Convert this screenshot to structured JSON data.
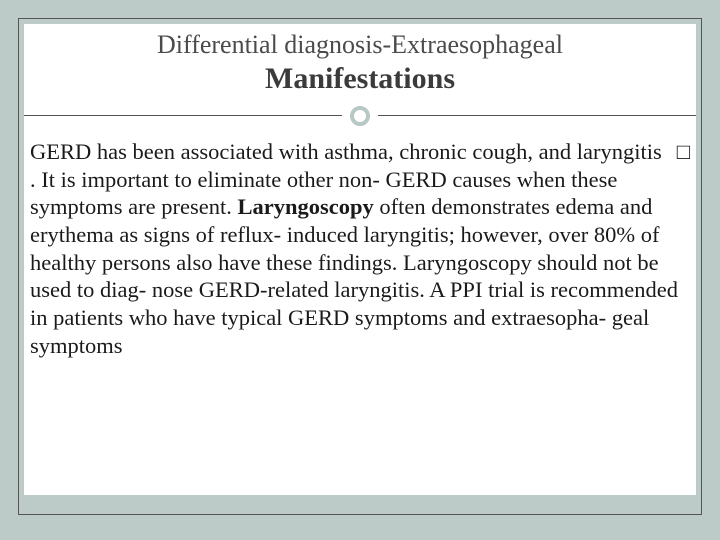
{
  "slide": {
    "title_line1": "Differential diagnosis-Extraesophageal",
    "title_line2": "Manifestations",
    "bullet_glyph": "□",
    "body_segments": [
      {
        "text": "GERD has been associated with asthma, chronic cough, and laryngitis . It is important  to eliminate other non- GERD causes when these symptoms are present. ",
        "bold": false
      },
      {
        "text": "Laryngoscopy",
        "bold": true
      },
      {
        "text": " often demonstrates edema and erythema as signs of reflux- induced laryngitis; however, over 80% of healthy persons also have these findings. Laryngoscopy should not be used to diag- nose GERD-related laryngitis. A PPI trial is recommended in patients who have typical GERD  symptoms and extraesopha- geal symptoms",
        "bold": false
      }
    ]
  },
  "style": {
    "border_color": "#bccbc7",
    "background_color": "#ffffff",
    "title_color": "#4b4b4b",
    "title_bold_color": "#3b3b3b",
    "body_color": "#1a1a1a",
    "rule_color": "#555555",
    "title_fontsize_pt": 20,
    "title2_fontsize_pt": 22,
    "body_fontsize_pt": 17,
    "font_family": "Georgia, 'Times New Roman', serif"
  }
}
